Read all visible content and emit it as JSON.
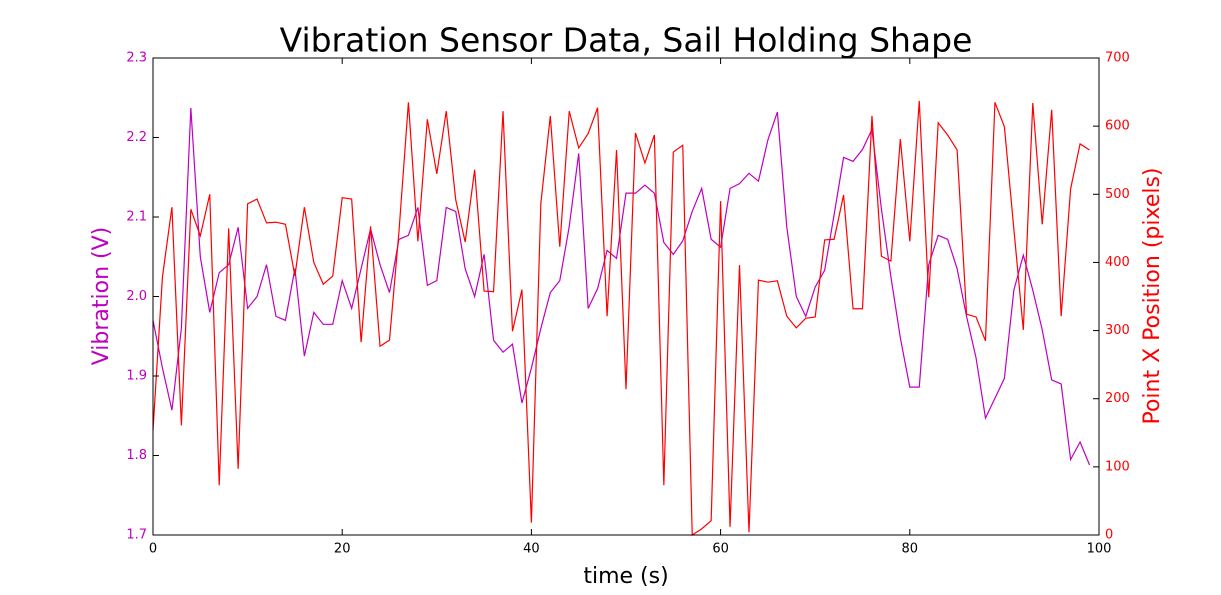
{
  "chart_data": {
    "type": "line",
    "title": "Vibration Sensor Data, Sail Holding Shape",
    "x_label": "time (s)",
    "y_label": "Vibration (V)",
    "y2_label": "Point X Position (pixels)",
    "x": [
      0,
      1,
      2,
      3,
      4,
      5,
      6,
      7,
      8,
      9,
      10,
      11,
      12,
      13,
      14,
      15,
      16,
      17,
      18,
      19,
      20,
      21,
      22,
      23,
      24,
      25,
      26,
      27,
      28,
      29,
      30,
      31,
      32,
      33,
      34,
      35,
      36,
      37,
      38,
      39,
      40,
      41,
      42,
      43,
      44,
      45,
      46,
      47,
      48,
      49,
      50,
      51,
      52,
      53,
      54,
      55,
      56,
      57,
      58,
      59,
      60,
      61,
      62,
      63,
      64,
      65,
      66,
      67,
      68,
      69,
      70,
      71,
      72,
      73,
      74,
      75,
      76,
      77,
      78,
      79,
      80,
      81,
      82,
      83,
      84,
      85,
      86,
      87,
      88,
      89,
      90,
      91,
      92,
      93,
      94,
      95,
      96,
      97,
      98,
      99
    ],
    "series": [
      {
        "name": "Vibration (V)",
        "color": "#bf00bf",
        "axis": "y",
        "values": [
          1.97,
          1.91,
          1.857,
          1.96,
          2.237,
          2.05,
          1.98,
          2.03,
          2.04,
          2.087,
          1.985,
          2.0,
          2.04,
          1.975,
          1.97,
          2.035,
          1.925,
          1.98,
          1.965,
          1.965,
          2.02,
          1.985,
          2.035,
          2.085,
          2.04,
          2.005,
          2.072,
          2.077,
          2.112,
          2.014,
          2.02,
          2.112,
          2.107,
          2.035,
          2.0,
          2.053,
          1.945,
          1.93,
          1.94,
          1.866,
          1.91,
          1.96,
          2.005,
          2.02,
          2.088,
          2.18,
          1.985,
          2.01,
          2.058,
          2.048,
          2.13,
          2.13,
          2.14,
          2.13,
          2.068,
          2.053,
          2.07,
          2.107,
          2.136,
          2.072,
          2.062,
          2.136,
          2.142,
          2.155,
          2.145,
          2.197,
          2.232,
          2.087,
          2.0,
          1.975,
          2.012,
          2.033,
          2.103,
          2.175,
          2.17,
          2.185,
          2.21,
          2.11,
          2.025,
          1.948,
          1.886,
          1.886,
          2.04,
          2.077,
          2.072,
          2.035,
          1.975,
          1.923,
          1.847,
          1.872,
          1.897,
          2.008,
          2.052,
          2.008,
          1.958,
          1.895,
          1.89,
          1.795,
          1.817,
          1.788
        ]
      },
      {
        "name": "Point X Position (pixels)",
        "color": "#ff0000",
        "axis": "y2",
        "values": [
          154,
          379,
          481,
          161,
          478,
          439,
          500,
          73,
          450,
          97,
          486,
          493,
          458,
          459,
          456,
          380,
          481,
          400,
          368,
          380,
          495,
          493,
          283,
          453,
          277,
          286,
          445,
          635,
          431,
          610,
          530,
          622,
          492,
          430,
          536,
          358,
          357,
          622,
          299,
          360,
          18,
          487,
          615,
          423,
          622,
          568,
          589,
          627,
          321,
          565,
          214,
          590,
          546,
          587,
          73,
          562,
          572,
          0,
          9,
          21,
          490,
          12,
          396,
          4,
          374,
          371,
          373,
          321,
          304,
          318,
          320,
          433,
          434,
          499,
          332,
          332,
          615,
          409,
          402,
          581,
          431,
          637,
          349,
          605,
          587,
          565,
          324,
          320,
          285,
          635,
          599,
          449,
          301,
          634,
          456,
          624,
          321,
          508,
          574,
          565
        ]
      }
    ],
    "xlim": [
      0,
      100
    ],
    "xticks": [
      0,
      20,
      40,
      60,
      80,
      100
    ],
    "ylim": [
      1.7,
      2.3
    ],
    "yticks": [
      1.7,
      1.8,
      1.9,
      {
        "value": 2,
        "label": "2.0"
      },
      2.1,
      2.2,
      2.3
    ],
    "y2lim": [
      0,
      700
    ],
    "y2ticks": [
      0,
      100,
      200,
      300,
      400,
      500,
      600,
      700
    ],
    "grid": false
  }
}
